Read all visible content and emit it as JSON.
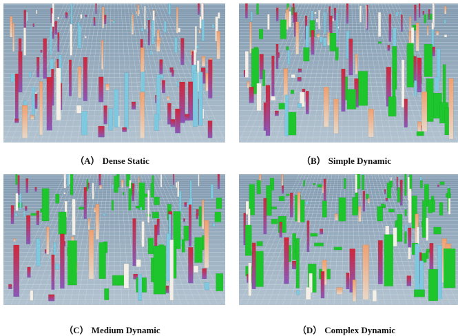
{
  "panels": [
    {
      "label": "（A）",
      "caption": "Dense Static"
    },
    {
      "label": "（B）",
      "caption": "Simple Dynamic"
    },
    {
      "label": "（C）",
      "caption": "Medium Dynamic"
    },
    {
      "label": "（D）",
      "caption": "Complex Dynamic"
    }
  ]
}
